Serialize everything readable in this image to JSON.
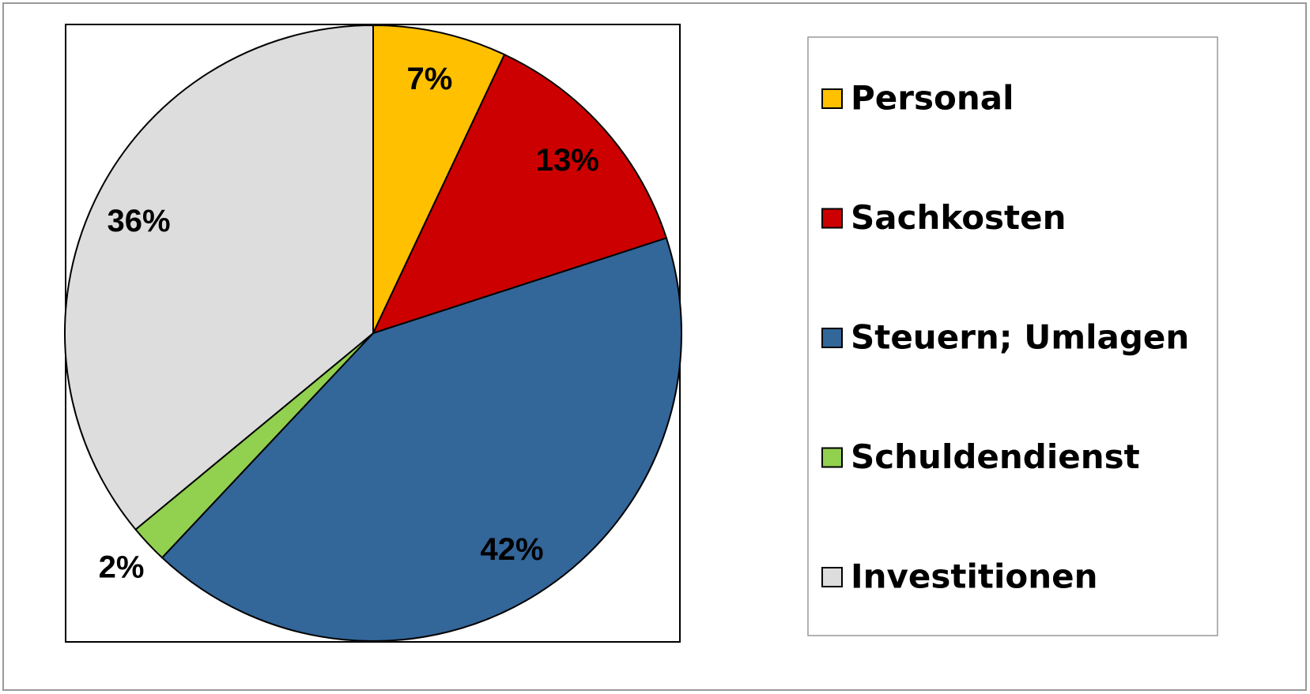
{
  "chart_data": {
    "type": "pie",
    "categories": [
      "Personal",
      "Sachkosten",
      "Steuern; Umlagen",
      "Schuldendienst",
      "Investitionen"
    ],
    "values": [
      7,
      13,
      42,
      2,
      36
    ],
    "value_labels": [
      "7%",
      "13%",
      "42%",
      "2%",
      "36%"
    ],
    "colors": [
      "#FFC000",
      "#CC0000",
      "#336699",
      "#92D050",
      "#DDDDDD"
    ],
    "legend": "right"
  }
}
